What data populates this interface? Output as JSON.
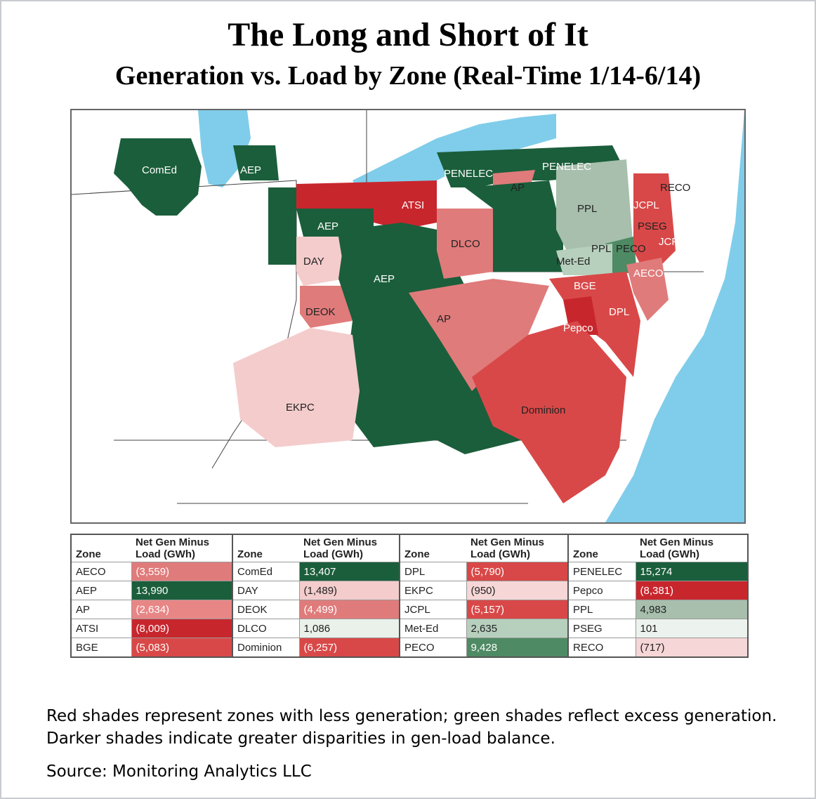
{
  "title": "The Long and Short of It",
  "subtitle": "Generation vs. Load by Zone (Real-Time 1/14-6/14)",
  "map": {
    "labels": [
      "ComEd",
      "AEP",
      "AEP",
      "AEP",
      "ATSI",
      "PENELEC",
      "PENELEC",
      "AP",
      "PPL",
      "RECO",
      "JCPL",
      "PSEG",
      "JCPL",
      "DLCO",
      "DAY",
      "PPL",
      "PECO",
      "Met-Ed",
      "AECO",
      "BGE",
      "DPL",
      "DEOK",
      "AP",
      "Pepco",
      "EKPC",
      "Dominion"
    ]
  },
  "table": {
    "col_zone": "Zone",
    "col_value_line1": "Net Gen Minus",
    "col_value_line2": "Load (GWh)",
    "rows": [
      [
        {
          "zone": "AECO",
          "value": "(3,559)",
          "color": "#e07b7b"
        },
        {
          "zone": "ComEd",
          "value": "13,407",
          "color": "#1b5e3b"
        },
        {
          "zone": "DPL",
          "value": "(5,790)",
          "color": "#d94848"
        },
        {
          "zone": "PENELEC",
          "value": "15,274",
          "color": "#1b5e3b"
        }
      ],
      [
        {
          "zone": "AEP",
          "value": "13,990",
          "color": "#1b5e3b"
        },
        {
          "zone": "DAY",
          "value": "(1,489)",
          "color": "#f4cccc"
        },
        {
          "zone": "EKPC",
          "value": "(950)",
          "color": "#f6d6d6"
        },
        {
          "zone": "Pepco",
          "value": "(8,381)",
          "color": "#c8262d"
        }
      ],
      [
        {
          "zone": "AP",
          "value": "(2,634)",
          "color": "#e88686"
        },
        {
          "zone": "DEOK",
          "value": "(4,499)",
          "color": "#e07b7b"
        },
        {
          "zone": "JCPL",
          "value": "(5,157)",
          "color": "#d94848"
        },
        {
          "zone": "PPL",
          "value": "4,983",
          "color": "#a7bfac"
        }
      ],
      [
        {
          "zone": "ATSI",
          "value": "(8,009)",
          "color": "#c8262d"
        },
        {
          "zone": "DLCO",
          "value": "1,086",
          "color": "#e9f1ea"
        },
        {
          "zone": "Met-Ed",
          "value": "2,635",
          "color": "#b7d0bd"
        },
        {
          "zone": "PSEG",
          "value": "101",
          "color": "#ecf3ee"
        }
      ],
      [
        {
          "zone": "BGE",
          "value": "(5,083)",
          "color": "#d94848"
        },
        {
          "zone": "Dominion",
          "value": "(6,257)",
          "color": "#d94848"
        },
        {
          "zone": "PECO",
          "value": "9,428",
          "color": "#4e8a64"
        },
        {
          "zone": "RECO",
          "value": "(717)",
          "color": "#f6d6d6"
        }
      ]
    ]
  },
  "caption": "Red shades represent zones with less generation; green shades reflect excess generation. Darker shades indicate greater disparities in gen-load balance.",
  "source": "Source: Monitoring Analytics LLC",
  "colors": {
    "water": "#7fcdea",
    "dark_green": "#1b5e3b",
    "mid_green": "#4e8a64",
    "light_green": "#a7bfac",
    "dark_red": "#c8262d",
    "red": "#d94848",
    "mid_red": "#e07b7b",
    "light_red": "#f4cccc"
  }
}
